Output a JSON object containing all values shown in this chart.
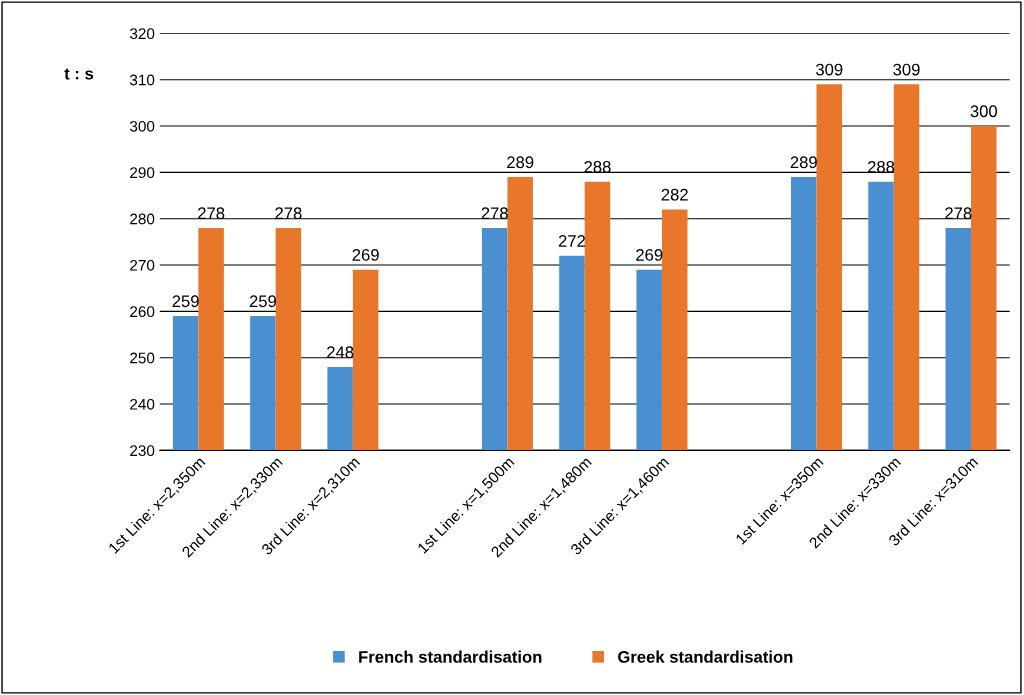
{
  "chart_data": {
    "type": "bar",
    "ylabel": "t : s",
    "categories": [
      "1st Line: x=2,350m",
      "2nd Line: x=2,330m",
      "3rd Line: x=2,310m",
      null,
      "1st Line: x=1,500m",
      "2nd Line: x=1,480m",
      "3rd Line: x=1,460m",
      null,
      "1st Line: x=350m",
      "2nd Line: x=330m",
      "3rd Line: x=310m"
    ],
    "series": [
      {
        "name": "French standardisation",
        "color": "#4a90d0",
        "values": [
          259,
          259,
          248,
          null,
          278,
          272,
          269,
          null,
          289,
          288,
          278
        ]
      },
      {
        "name": "Greek standardisation",
        "color": "#e8762b",
        "values": [
          278,
          278,
          269,
          null,
          289,
          288,
          282,
          null,
          309,
          309,
          300
        ]
      }
    ],
    "ylim": [
      230,
      320
    ],
    "yticks": [
      230,
      240,
      250,
      260,
      270,
      280,
      290,
      300,
      310,
      320
    ],
    "grid": "y",
    "legend": "bottom",
    "data_labels": true
  }
}
